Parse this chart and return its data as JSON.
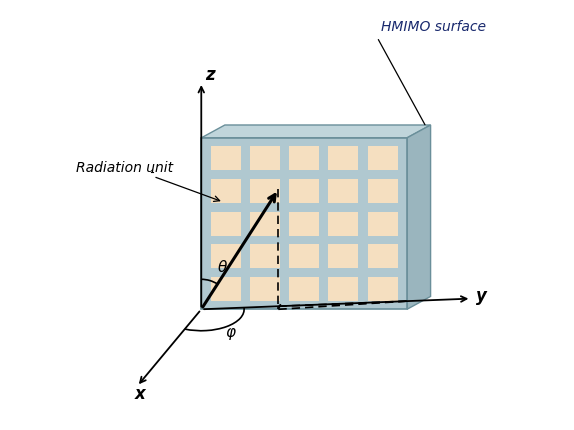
{
  "bg_color": "#ffffff",
  "panel_face_color": "#b0c8d0",
  "panel_top_color": "#c0d5db",
  "panel_right_color": "#9ab5be",
  "cell_color": "#f5dfc0",
  "grid_rows": 5,
  "grid_cols": 5,
  "label_theta": "θ",
  "label_phi": "φ",
  "label_x": "x",
  "label_y": "y",
  "label_z": "z",
  "label_hmimo": "HMIMO surface",
  "label_radiation": "Radiation unit"
}
